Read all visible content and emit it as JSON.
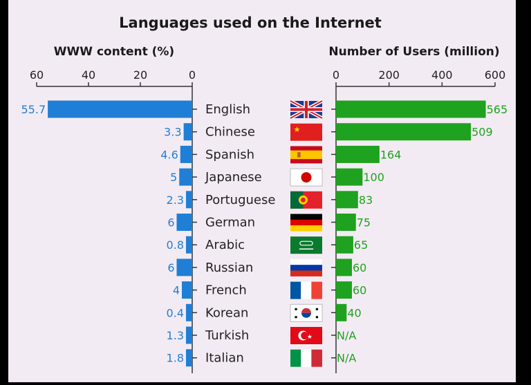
{
  "chart_data": {
    "type": "bar",
    "title": "Languages used on the Internet",
    "categories": [
      "English",
      "Chinese",
      "Spanish",
      "Japanese",
      "Portuguese",
      "German",
      "Arabic",
      "Russian",
      "French",
      "Korean",
      "Turkish",
      "Italian"
    ],
    "left": {
      "title": "WWW content (%)",
      "values": [
        55.7,
        3.3,
        4.6,
        5,
        2.3,
        6,
        0.8,
        6,
        4,
        0.4,
        1.3,
        1.8
      ],
      "labels": [
        "55.7",
        "3.3",
        "4.6",
        "5",
        "2.3",
        "6",
        "0.8",
        "6",
        "4",
        "0.4",
        "1.3",
        "1.8"
      ],
      "ticks": [
        60,
        40,
        20,
        0
      ],
      "xlim": [
        0,
        60
      ],
      "color": "#1f7fd6"
    },
    "right": {
      "title": "Number of Users (million)",
      "values": [
        565,
        509,
        164,
        100,
        83,
        75,
        65,
        60,
        60,
        40,
        null,
        null
      ],
      "labels": [
        "565",
        "509",
        "164",
        "100",
        "83",
        "75",
        "65",
        "60",
        "60",
        "40",
        "N/A",
        "N/A"
      ],
      "ticks": [
        0,
        200,
        400,
        600
      ],
      "xlim": [
        0,
        600
      ],
      "color": "#1fa21f"
    },
    "flags": [
      "uk-flag",
      "china-flag",
      "spain-flag",
      "japan-flag",
      "portugal-flag",
      "germany-flag",
      "saudi-arabia-flag",
      "russia-flag",
      "france-flag",
      "south-korea-flag",
      "turkey-flag",
      "italy-flag"
    ],
    "grid": false,
    "legend": "none"
  },
  "colors": {
    "background": "#f3ebf3",
    "left_bar": "#1f7fd6",
    "right_bar": "#1fa21f",
    "frame": "#000000"
  }
}
